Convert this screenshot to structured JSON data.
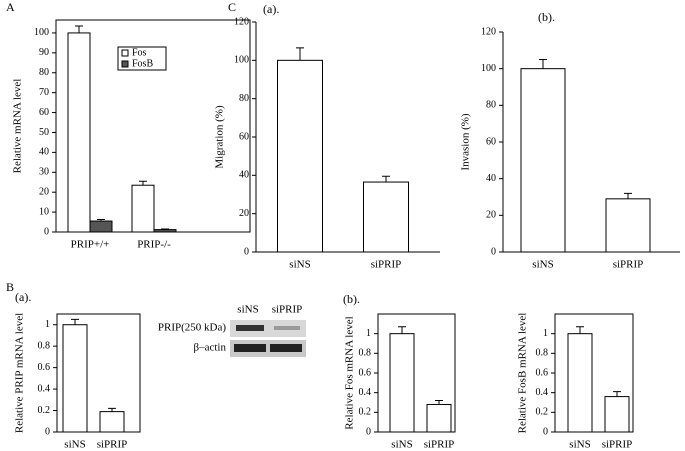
{
  "chart_data": [
    {
      "type": "bar",
      "panel": "A",
      "ylabel": "Relative mRNA level",
      "categories": [
        "PRIP+/+",
        "PRIP-/-"
      ],
      "series": [
        {
          "name": "Fos",
          "color": "#ffffff",
          "values": [
            100,
            23.5
          ],
          "errors": [
            3.5,
            2
          ]
        },
        {
          "name": "FosB",
          "color": "#555555",
          "values": [
            5.5,
            1.2
          ],
          "errors": [
            0.8,
            0.3
          ]
        }
      ],
      "ylim": [
        0,
        106.5
      ],
      "yticks": [
        0,
        10,
        20,
        30,
        40,
        50,
        60,
        70,
        80,
        90,
        100
      ],
      "frame": true
    },
    {
      "type": "bar",
      "panel": "C",
      "subtitle": "(a).",
      "ylabel": "Migration (%)",
      "categories": [
        "siNS",
        "siPRIP"
      ],
      "series": [
        {
          "color": "#ffffff",
          "values": [
            100,
            36.5
          ],
          "errors": [
            6.5,
            3
          ]
        }
      ],
      "ylim": [
        0,
        120
      ],
      "yticks": [
        0,
        20,
        40,
        60,
        80,
        100,
        120
      ],
      "frame": false
    },
    {
      "type": "bar",
      "subtitle": "(b).",
      "ylabel": "Invasion (%)",
      "categories": [
        "siNS",
        "siPRIP"
      ],
      "series": [
        {
          "color": "#ffffff",
          "values": [
            100,
            29
          ],
          "errors": [
            5,
            3
          ]
        }
      ],
      "ylim": [
        0,
        120
      ],
      "yticks": [
        0,
        20,
        40,
        60,
        80,
        100,
        120
      ],
      "frame": false
    },
    {
      "type": "bar",
      "panel": "B",
      "subtitle": "(a).",
      "ylabel": "Relative PRIP mRNA level",
      "categories": [
        "siNS",
        "siPRIP"
      ],
      "series": [
        {
          "color": "#ffffff",
          "values": [
            1,
            0.19
          ],
          "errors": [
            0.05,
            0.03
          ]
        }
      ],
      "ylim": [
        0,
        1.1
      ],
      "yticks": [
        0,
        0.2,
        0.4,
        0.6,
        0.8,
        1
      ],
      "frame": true
    },
    {
      "type": "bar",
      "subtitle": "(b).",
      "ylabel": "Relative Fos mRNA level",
      "categories": [
        "siNS",
        "siPRIP"
      ],
      "series": [
        {
          "color": "#ffffff",
          "values": [
            1,
            0.28
          ],
          "errors": [
            0.07,
            0.04
          ]
        }
      ],
      "ylim": [
        0,
        1.2
      ],
      "yticks": [
        0,
        0.2,
        0.4,
        0.6,
        0.8,
        1
      ],
      "frame": true
    },
    {
      "type": "bar",
      "ylabel": "Relative FosB mRNA level",
      "categories": [
        "siNS",
        "siPRIP"
      ],
      "series": [
        {
          "color": "#ffffff",
          "values": [
            1,
            0.36
          ],
          "errors": [
            0.07,
            0.05
          ]
        }
      ],
      "ylim": [
        0,
        1.2
      ],
      "yticks": [
        0,
        0.2,
        0.4,
        0.6,
        0.8,
        1
      ],
      "frame": true
    }
  ],
  "blot": {
    "lanes": [
      "siNS",
      "siPRIP"
    ],
    "bands": [
      "PRIP(250 kDa)",
      "β–actin"
    ]
  }
}
